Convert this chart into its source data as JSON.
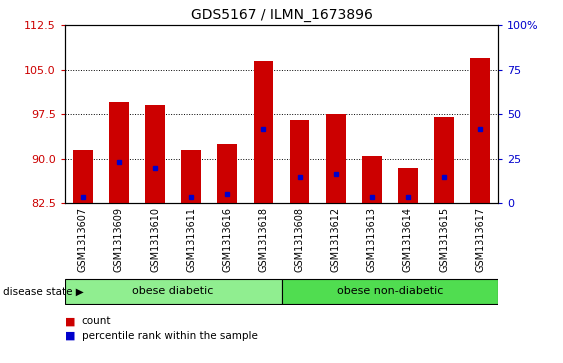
{
  "title": "GDS5167 / ILMN_1673896",
  "samples": [
    "GSM1313607",
    "GSM1313609",
    "GSM1313610",
    "GSM1313611",
    "GSM1313616",
    "GSM1313618",
    "GSM1313608",
    "GSM1313612",
    "GSM1313613",
    "GSM1313614",
    "GSM1313615",
    "GSM1313617"
  ],
  "count_values": [
    91.5,
    99.5,
    99.0,
    91.5,
    92.5,
    106.5,
    96.5,
    97.5,
    90.5,
    88.5,
    97.0,
    107.0
  ],
  "percentile_values": [
    83.5,
    89.5,
    88.5,
    83.5,
    84.0,
    95.0,
    87.0,
    87.5,
    83.5,
    83.5,
    87.0,
    95.0
  ],
  "ylim_left": [
    82.5,
    112.5
  ],
  "yticks_left": [
    82.5,
    90.0,
    97.5,
    105.0,
    112.5
  ],
  "yticks_right": [
    0,
    25,
    50,
    75,
    100
  ],
  "bar_color": "#cc0000",
  "dot_color": "#0000cc",
  "base": 82.5,
  "groups": [
    {
      "label": "obese diabetic",
      "start": 0,
      "end": 6,
      "color": "#90ee90"
    },
    {
      "label": "obese non-diabetic",
      "start": 6,
      "end": 12,
      "color": "#50dd50"
    }
  ],
  "group_label_prefix": "disease state",
  "legend_items": [
    {
      "label": "count",
      "color": "#cc0000"
    },
    {
      "label": "percentile rank within the sample",
      "color": "#0000cc"
    }
  ],
  "tick_area_color": "#c8c8c8",
  "right_tick_labels": [
    "0",
    "25",
    "50",
    "75",
    "100%"
  ]
}
